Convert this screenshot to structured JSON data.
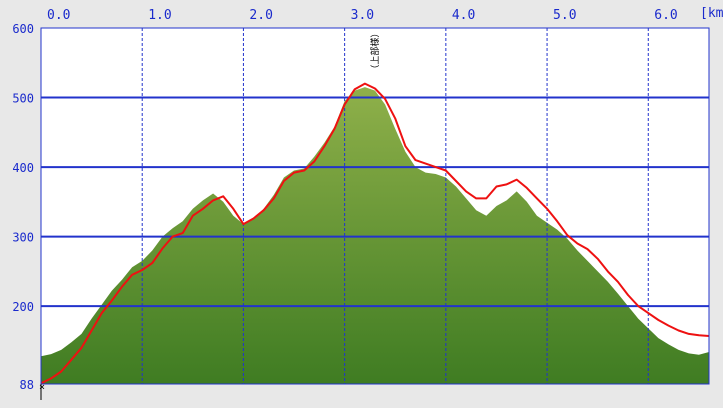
{
  "chart_data": {
    "type": "area",
    "title": "",
    "x_unit": "[km]",
    "xlim": [
      0.0,
      6.6
    ],
    "ylim": [
      88,
      600
    ],
    "x_ticks": [
      "0.0",
      "1.0",
      "2.0",
      "3.0",
      "4.0",
      "5.0",
      "6.0"
    ],
    "y_ticks": [
      {
        "label": "600",
        "value": 600
      },
      {
        "label": "500",
        "value": 500
      },
      {
        "label": "400",
        "value": 400
      },
      {
        "label": "300",
        "value": 300
      },
      {
        "label": "200",
        "value": 200
      },
      {
        "label": "88",
        "value": 88
      }
    ],
    "grid": true,
    "annotation": {
      "text": "（上部様）",
      "x": 3.3,
      "y": 520
    },
    "colors": {
      "background": "#e8e8e8",
      "plot_background": "#ffffff",
      "grid": "#2233cc",
      "area_top": "#8fb04a",
      "area_bottom": "#3f7c22",
      "line": "#ee1111",
      "axis_text": "#1a2acc"
    },
    "series": [
      {
        "kind": "area",
        "x": [
          0.0,
          0.1,
          0.2,
          0.3,
          0.4,
          0.5,
          0.6,
          0.7,
          0.8,
          0.9,
          1.0,
          1.1,
          1.2,
          1.3,
          1.4,
          1.5,
          1.6,
          1.7,
          1.8,
          1.9,
          2.0,
          2.1,
          2.2,
          2.3,
          2.4,
          2.5,
          2.6,
          2.7,
          2.8,
          2.9,
          3.0,
          3.1,
          3.2,
          3.3,
          3.4,
          3.5,
          3.6,
          3.7,
          3.8,
          3.9,
          4.0,
          4.1,
          4.2,
          4.3,
          4.4,
          4.5,
          4.6,
          4.7,
          4.8,
          4.9,
          5.0,
          5.1,
          5.2,
          5.3,
          5.4,
          5.5,
          5.6,
          5.7,
          5.8,
          5.9,
          6.0,
          6.1,
          6.2,
          6.3,
          6.4,
          6.5,
          6.6
        ],
        "y": [
          128,
          131,
          137,
          148,
          160,
          182,
          202,
          222,
          238,
          256,
          265,
          280,
          300,
          312,
          322,
          340,
          352,
          362,
          350,
          330,
          318,
          325,
          340,
          360,
          385,
          395,
          398,
          415,
          435,
          458,
          495,
          510,
          515,
          510,
          490,
          455,
          422,
          400,
          392,
          390,
          385,
          372,
          355,
          338,
          330,
          344,
          352,
          365,
          350,
          330,
          320,
          310,
          297,
          280,
          265,
          250,
          235,
          218,
          200,
          182,
          168,
          154,
          145,
          137,
          132,
          130,
          134
        ]
      },
      {
        "kind": "line",
        "x": [
          0.0,
          0.1,
          0.2,
          0.3,
          0.4,
          0.5,
          0.6,
          0.7,
          0.8,
          0.9,
          1.0,
          1.1,
          1.2,
          1.3,
          1.4,
          1.5,
          1.6,
          1.7,
          1.8,
          1.9,
          2.0,
          2.1,
          2.2,
          2.3,
          2.4,
          2.5,
          2.6,
          2.7,
          2.8,
          2.9,
          3.0,
          3.1,
          3.2,
          3.3,
          3.4,
          3.5,
          3.6,
          3.7,
          3.8,
          3.9,
          4.0,
          4.1,
          4.2,
          4.3,
          4.4,
          4.5,
          4.6,
          4.7,
          4.8,
          4.9,
          5.0,
          5.1,
          5.2,
          5.3,
          5.4,
          5.5,
          5.6,
          5.7,
          5.8,
          5.9,
          6.0,
          6.1,
          6.2,
          6.3,
          6.4,
          6.5,
          6.6
        ],
        "y": [
          89,
          96,
          106,
          123,
          140,
          165,
          190,
          208,
          228,
          245,
          252,
          262,
          283,
          300,
          305,
          330,
          340,
          352,
          358,
          340,
          318,
          326,
          338,
          355,
          380,
          392,
          395,
          408,
          430,
          455,
          490,
          512,
          520,
          513,
          498,
          470,
          430,
          410,
          405,
          400,
          395,
          380,
          365,
          355,
          355,
          372,
          375,
          382,
          370,
          355,
          340,
          322,
          302,
          290,
          282,
          268,
          250,
          235,
          216,
          200,
          190,
          180,
          172,
          165,
          160,
          158,
          157
        ]
      }
    ]
  }
}
